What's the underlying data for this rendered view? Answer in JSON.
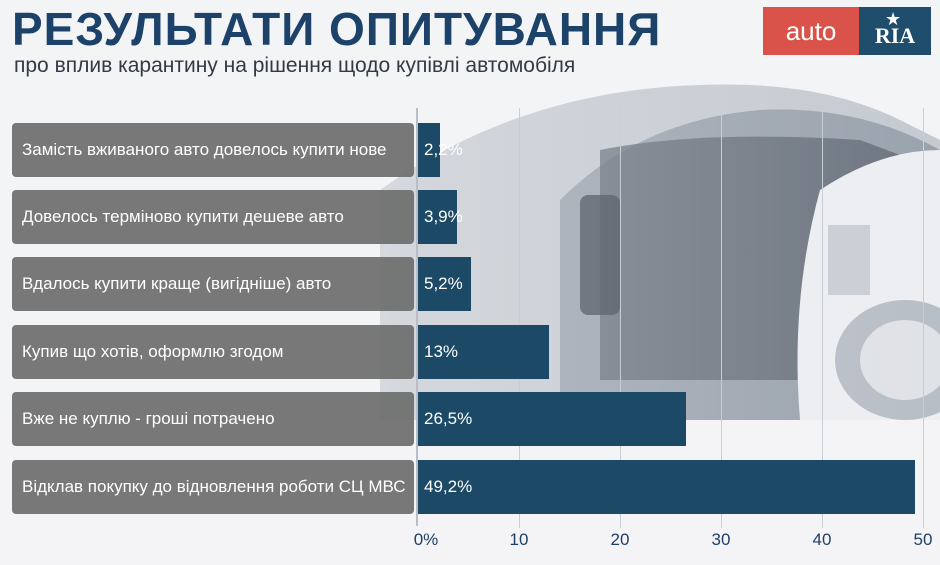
{
  "header": {
    "title": "РЕЗУЛЬТАТИ ОПИТУВАННЯ",
    "subtitle": "про вплив карантину на рішення щодо купівлі автомобіля"
  },
  "logo": {
    "part1": "auto",
    "part2": "RIA",
    "colors": {
      "auto_bg": "#d9534a",
      "ria_bg": "#1f4d6c"
    }
  },
  "chart_data": {
    "type": "bar",
    "orientation": "horizontal",
    "categories": [
      "Замість вживаного авто довелось купити нове",
      "Довелось терміново купити дешеве авто",
      "Вдалось купити краще (вигідніше) авто",
      "Купив що хотів, оформлю згодом",
      "Вже не куплю - гроші потрачено",
      "Відклав покупку до відновлення роботи СЦ МВС"
    ],
    "values": [
      2.2,
      3.9,
      5.2,
      13,
      26.5,
      49.2
    ],
    "value_labels": [
      "2,2%",
      "3,9%",
      "5,2%",
      "13%",
      "26,5%",
      "49,2%"
    ],
    "xlim": [
      0,
      50
    ],
    "x_ticks": [
      "0%",
      "10",
      "20",
      "30",
      "40",
      "50"
    ],
    "grid": true,
    "colors": {
      "bar": "#1c4a66",
      "label_bg": "#6e6e6e",
      "tick_text": "#1e3f66"
    }
  }
}
